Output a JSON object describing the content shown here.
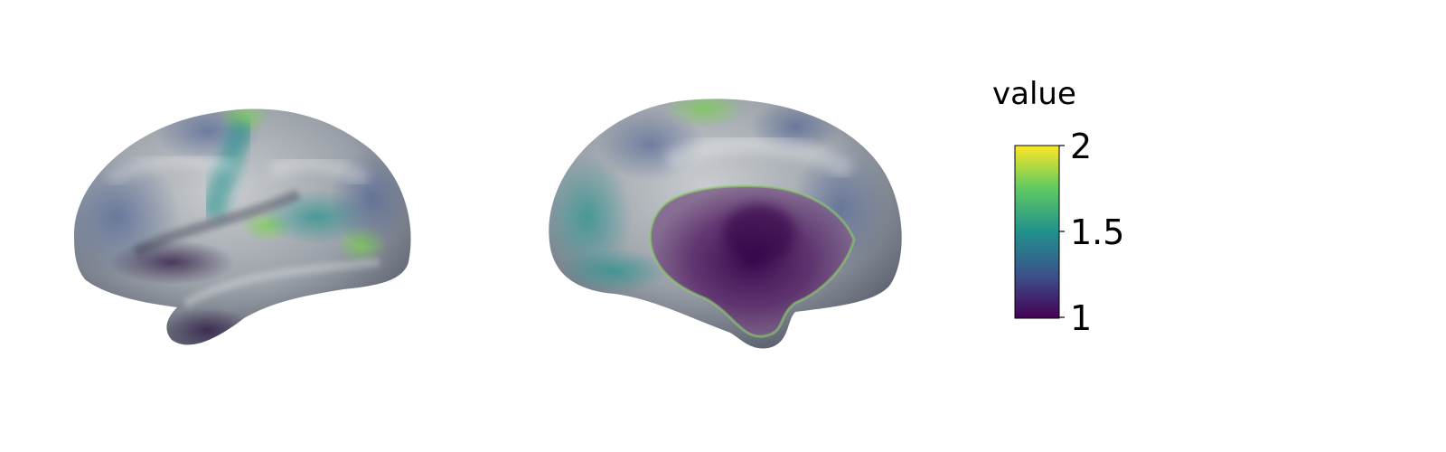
{
  "colorbar": {
    "title": "value",
    "ticks": [
      "2",
      "1.5",
      "1"
    ],
    "min": 1,
    "max": 2,
    "colormap": "viridis",
    "colors": [
      "#440154",
      "#3b528b",
      "#21918c",
      "#5ec962",
      "#fde725"
    ]
  },
  "views": [
    "lateral",
    "medial"
  ]
}
